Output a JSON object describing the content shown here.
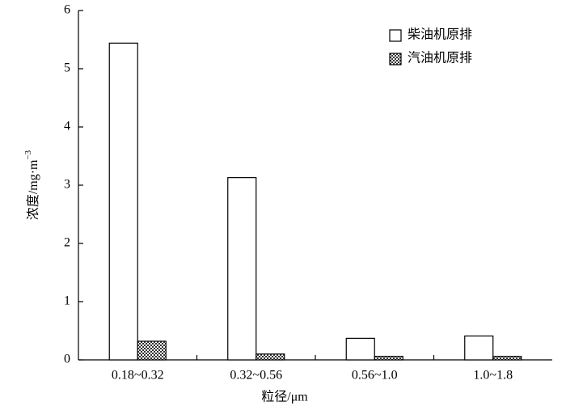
{
  "chart_data": {
    "type": "bar",
    "ylabel": "浓度/mg·m",
    "ylabel_sup": "−3",
    "xlabel": "粒径/μm",
    "categories": [
      "0.18~0.32",
      "0.32~0.56",
      "0.56~1.0",
      "1.0~1.8"
    ],
    "series": [
      {
        "name": "柴油机原排",
        "color": "#ffffff",
        "values": [
          5.44,
          3.13,
          0.37,
          0.41
        ]
      },
      {
        "name": "汽油机原排",
        "color": "#333333",
        "pattern": "crosshatch",
        "values": [
          0.32,
          0.1,
          0.06,
          0.06
        ]
      }
    ],
    "ylim": [
      0,
      6
    ],
    "yticks": [
      0,
      1,
      2,
      3,
      4,
      5,
      6
    ],
    "legend": "upper right"
  }
}
